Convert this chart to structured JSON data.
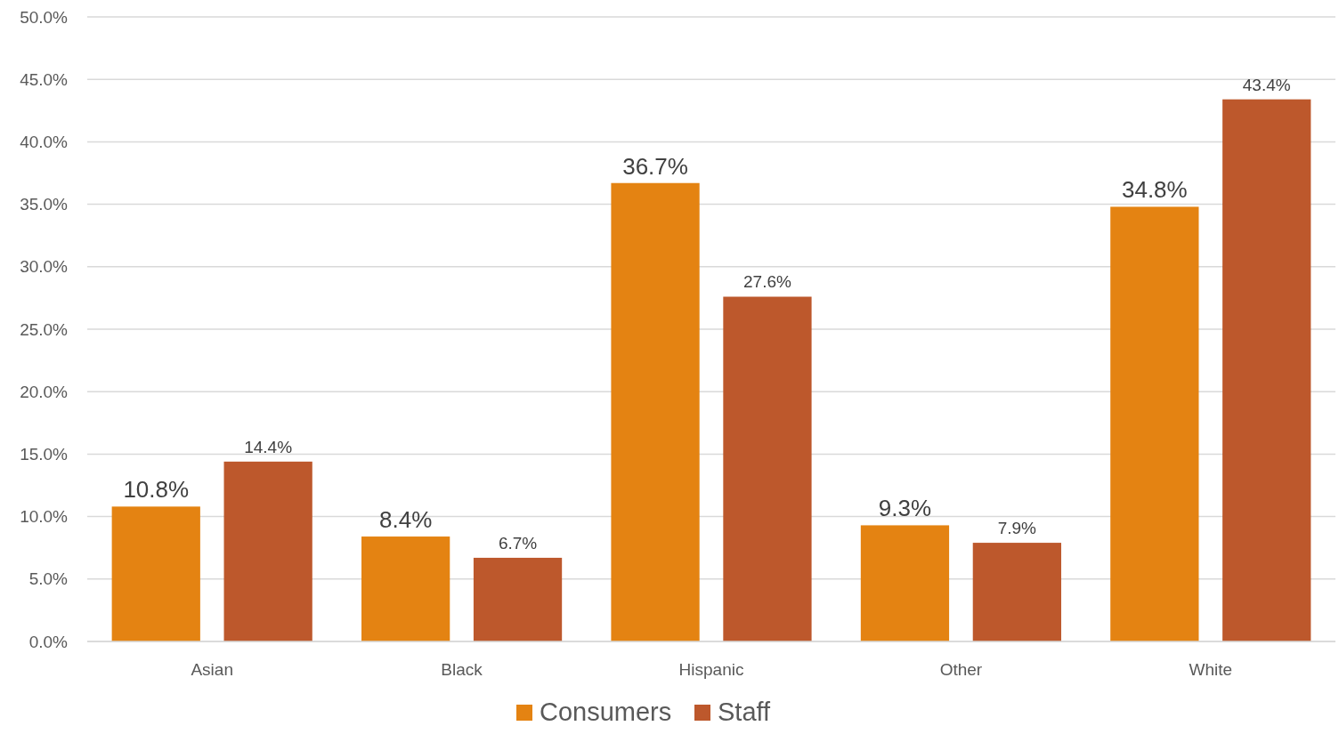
{
  "chart_data": {
    "type": "bar",
    "categories": [
      "Asian",
      "Black",
      "Hispanic",
      "Other",
      "White"
    ],
    "series": [
      {
        "name": "Consumers",
        "color": "#e48312",
        "values": [
          10.8,
          8.4,
          36.7,
          9.3,
          34.8
        ],
        "value_labels": [
          "10.8%",
          "8.4%",
          "36.7%",
          "9.3%",
          "34.8%"
        ]
      },
      {
        "name": "Staff",
        "color": "#bd582c",
        "values": [
          14.4,
          6.7,
          27.6,
          7.9,
          43.4
        ],
        "value_labels": [
          "14.4%",
          "6.7%",
          "27.6%",
          "7.9%",
          "43.4%"
        ]
      }
    ],
    "ylim": [
      0,
      50
    ],
    "yticks": [
      {
        "value": 0,
        "label": "0.0%"
      },
      {
        "value": 5,
        "label": "5.0%"
      },
      {
        "value": 10,
        "label": "10.0%"
      },
      {
        "value": 15,
        "label": "15.0%"
      },
      {
        "value": 20,
        "label": "20.0%"
      },
      {
        "value": 25,
        "label": "25.0%"
      },
      {
        "value": 30,
        "label": "30.0%"
      },
      {
        "value": 35,
        "label": "35.0%"
      },
      {
        "value": 40,
        "label": "40.0%"
      },
      {
        "value": 45,
        "label": "45.0%"
      },
      {
        "value": 50,
        "label": "50.0%"
      }
    ],
    "grid": "y",
    "legend": "bottom"
  }
}
